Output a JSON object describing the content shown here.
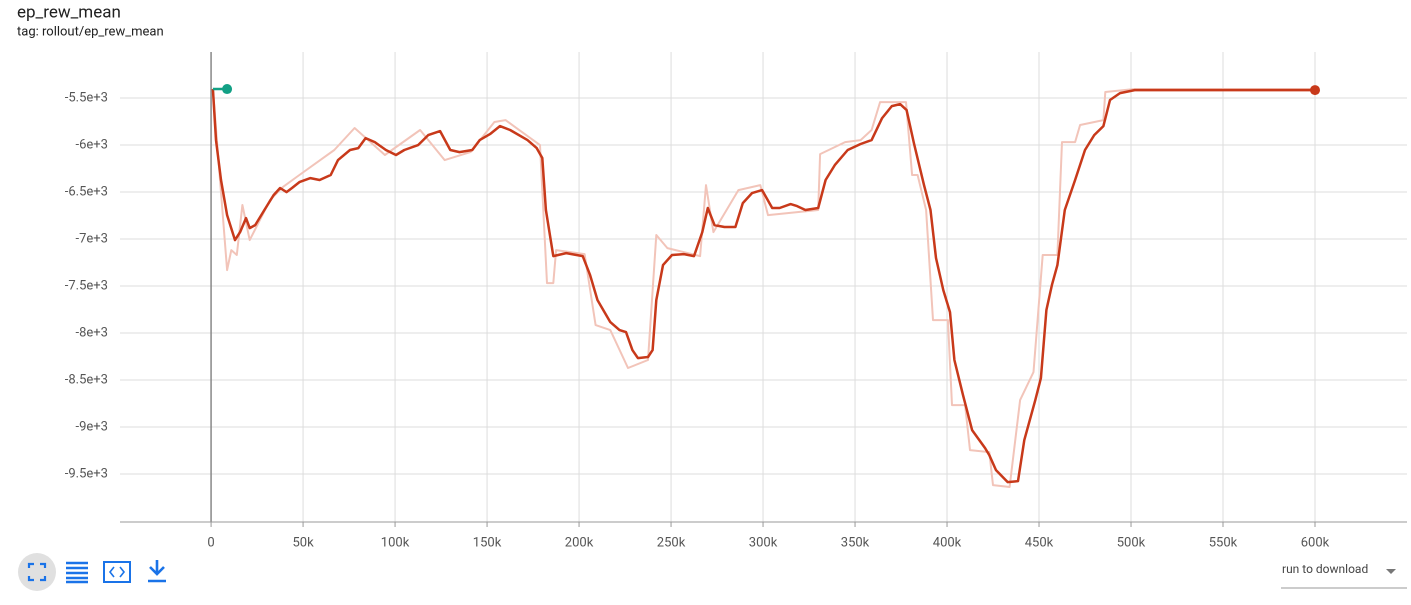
{
  "header": {
    "title": "ep_rew_mean",
    "tag": "tag: rollout/ep_rew_mean"
  },
  "controls": {
    "download_select": "run to download"
  },
  "chart_data": {
    "type": "line",
    "xlim": [
      -49500,
      650000
    ],
    "ylim": [
      -10010,
      -5010
    ],
    "grid": true,
    "xticks": [
      0,
      {
        "value": 50000,
        "label": "50k"
      },
      {
        "value": 100000,
        "label": "100k"
      },
      {
        "value": 150000,
        "label": "150k"
      },
      {
        "value": 200000,
        "label": "200k"
      },
      {
        "value": 250000,
        "label": "250k"
      },
      {
        "value": 300000,
        "label": "300k"
      },
      {
        "value": 350000,
        "label": "350k"
      },
      {
        "value": 400000,
        "label": "400k"
      },
      {
        "value": 450000,
        "label": "450k"
      },
      {
        "value": 500000,
        "label": "500k"
      },
      {
        "value": 550000,
        "label": "550k"
      },
      {
        "value": 600000,
        "label": "600k"
      }
    ],
    "yticks": [
      {
        "value": -5500,
        "label": "-5.5e+3"
      },
      {
        "value": -6000,
        "label": "-6e+3"
      },
      {
        "value": -6500,
        "label": "-6.5e+3"
      },
      {
        "value": -7000,
        "label": "-7e+3"
      },
      {
        "value": -7500,
        "label": "-7.5e+3"
      },
      {
        "value": -8000,
        "label": "-8e+3"
      },
      {
        "value": -8500,
        "label": "-8.5e+3"
      },
      {
        "value": -9000,
        "label": "-9e+3"
      },
      {
        "value": -9500,
        "label": "-9.5e+3"
      }
    ],
    "series": [
      {
        "color": "#f2c4b9",
        "width": 2,
        "x": [
          1000,
          8700,
          11000,
          14000,
          17000,
          21000,
          32000,
          39000,
          48000,
          67000,
          78000,
          94500,
          113600,
          127000,
          141000,
          154000,
          160000,
          178800,
          182600,
          186000,
          187500,
          203000,
          209000,
          217000,
          226600,
          237500,
          242000,
          248000,
          265800,
          269000,
          273000,
          286600,
          298500,
          302700,
          330000,
          331000,
          344600,
          353000,
          359000,
          363600,
          377700,
          381000,
          384000,
          388600,
          392400,
          400500,
          402700,
          409800,
          412500,
          423000,
          425000,
          434000,
          439700,
          447000,
          452000,
          460000,
          462500,
          469600,
          472300,
          485000,
          486000,
          502000,
          600000
        ],
        "values": [
          -5404,
          -7330,
          -7117,
          -7170,
          -6638,
          -7011,
          -6585,
          -6447,
          -6319,
          -6053,
          -5819,
          -6106,
          -5840,
          -6160,
          -6075,
          -5755,
          -5734,
          -6000,
          -7468,
          -7468,
          -7117,
          -7160,
          -7915,
          -7968,
          -8372,
          -8287,
          -6957,
          -7096,
          -7181,
          -6426,
          -6926,
          -6479,
          -6426,
          -6745,
          -6691,
          -6096,
          -5968,
          -5947,
          -5840,
          -5543,
          -5543,
          -6319,
          -6319,
          -6691,
          -7862,
          -7862,
          -8766,
          -8766,
          -9245,
          -9266,
          -9617,
          -9638,
          -8713,
          -8415,
          -7170,
          -7170,
          -5968,
          -5968,
          -5787,
          -5734,
          -5436,
          -5404,
          -5404
        ]
      },
      {
        "color": "#c8391a",
        "width": 2.5,
        "marker": true,
        "x": [
          1000,
          2700,
          5400,
          8700,
          13000,
          15800,
          19000,
          21000,
          24000,
          29000,
          34000,
          37500,
          41000,
          44000,
          48000,
          54000,
          59000,
          65000,
          69000,
          75500,
          80000,
          84000,
          89000,
          95000,
          100500,
          105000,
          112500,
          118000,
          124500,
          130000,
          135000,
          142000,
          146000,
          151600,
          157000,
          162500,
          172000,
          177000,
          180000,
          182000,
          186000,
          193000,
          202000,
          206000,
          210000,
          217000,
          222000,
          225500,
          229000,
          232000,
          237500,
          240000,
          242000,
          245600,
          250500,
          257000,
          262500,
          267000,
          270000,
          273600,
          279000,
          285000,
          289000,
          294000,
          299500,
          305000,
          309000,
          315000,
          318500,
          323000,
          330000,
          334000,
          339000,
          346000,
          353000,
          359000,
          364700,
          370000,
          374500,
          378000,
          382000,
          387500,
          391000,
          394000,
          398000,
          401600,
          404000,
          408700,
          413600,
          420700,
          423000,
          426600,
          433000,
          438600,
          442000,
          448000,
          451000,
          454000,
          457000,
          460000,
          464000,
          469600,
          475000,
          480000,
          485000,
          488600,
          494000,
          502000,
          600000
        ],
        "values": [
          -5404,
          -5947,
          -6372,
          -6745,
          -7011,
          -6926,
          -6777,
          -6883,
          -6851,
          -6691,
          -6532,
          -6457,
          -6500,
          -6457,
          -6394,
          -6351,
          -6372,
          -6319,
          -6160,
          -6053,
          -6032,
          -5926,
          -5968,
          -6053,
          -6106,
          -6053,
          -6000,
          -5894,
          -5851,
          -6053,
          -6075,
          -6053,
          -5947,
          -5883,
          -5798,
          -5840,
          -5947,
          -6032,
          -6138,
          -6691,
          -7181,
          -7149,
          -7181,
          -7383,
          -7649,
          -7883,
          -7968,
          -7990,
          -8181,
          -8266,
          -8255,
          -8181,
          -7649,
          -7277,
          -7170,
          -7160,
          -7181,
          -6926,
          -6670,
          -6851,
          -6872,
          -6872,
          -6617,
          -6511,
          -6479,
          -6670,
          -6670,
          -6628,
          -6649,
          -6691,
          -6670,
          -6372,
          -6213,
          -6053,
          -5989,
          -5947,
          -5713,
          -5585,
          -5564,
          -5628,
          -5979,
          -6426,
          -6691,
          -7202,
          -7543,
          -7777,
          -8287,
          -8660,
          -9032,
          -9224,
          -9298,
          -9458,
          -9585,
          -9575,
          -9139,
          -8713,
          -8479,
          -7755,
          -7490,
          -7277,
          -6691,
          -6372,
          -6053,
          -5894,
          -5798,
          -5521,
          -5447,
          -5415,
          -5415
        ]
      },
      {
        "color": "#12a085",
        "width": 2.5,
        "marker": true,
        "x": [
          1000,
          8700
        ],
        "values": [
          -5404,
          -5404
        ]
      }
    ]
  }
}
